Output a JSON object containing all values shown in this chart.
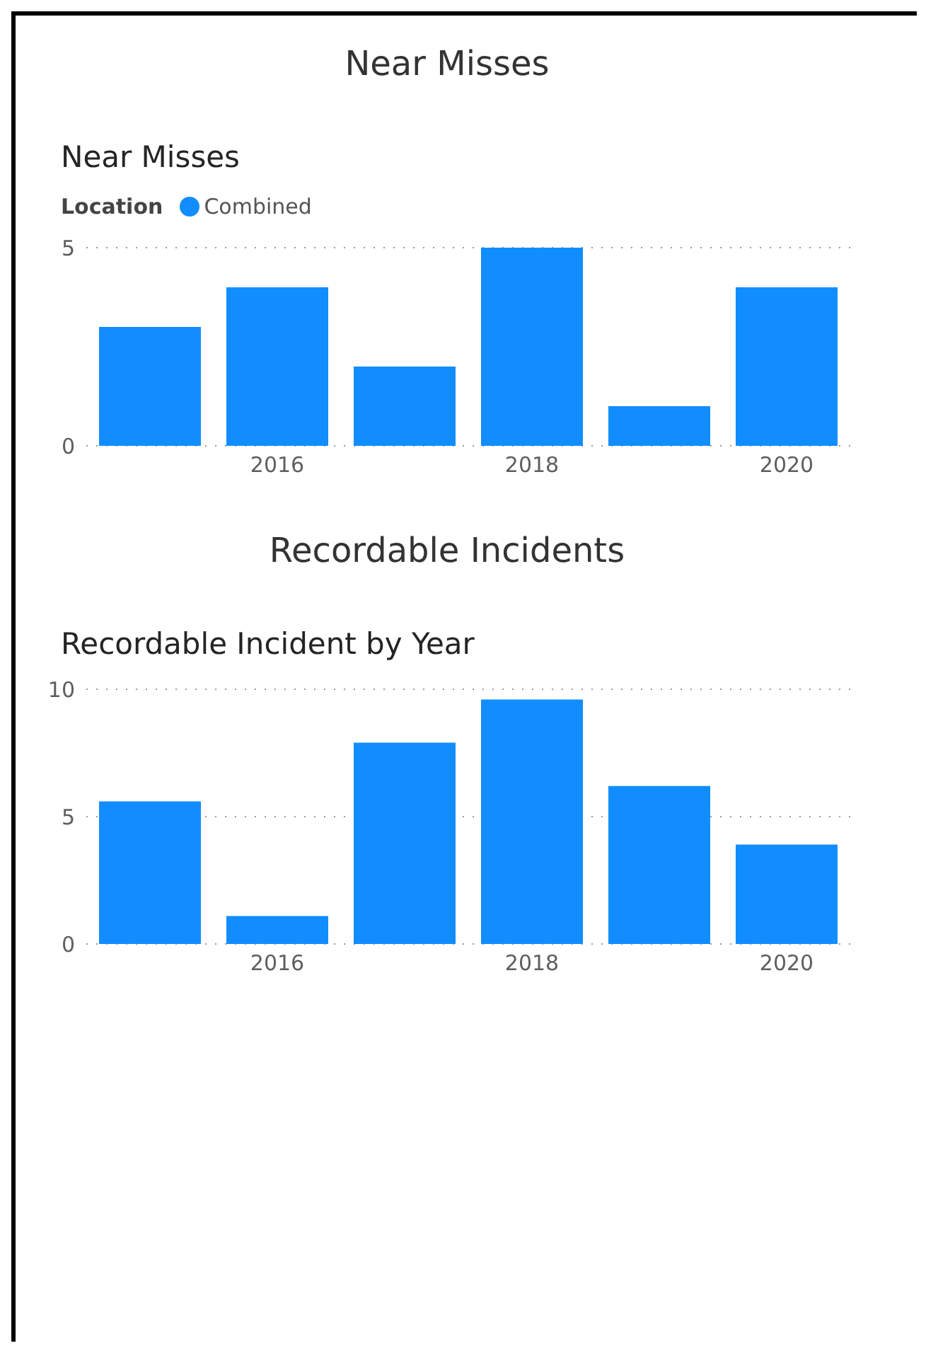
{
  "chart_data": [
    {
      "type": "bar",
      "title": "Near Misses",
      "subtitle": "Near Misses",
      "legend_title": "Location",
      "categories": [
        null,
        "2016",
        null,
        "2018",
        null,
        "2020"
      ],
      "series": [
        {
          "name": "Combined",
          "color": "#118dff",
          "values": [
            3,
            4,
            2,
            5,
            1,
            4
          ]
        }
      ],
      "ylim": [
        0,
        5
      ],
      "yticks": [
        0,
        5
      ],
      "grid": "y",
      "legend": "top left"
    },
    {
      "type": "bar",
      "title": "Recordable Incidents",
      "subtitle": "Recordable Incident by Year",
      "categories": [
        null,
        "2016",
        null,
        "2018",
        null,
        "2020"
      ],
      "series": [
        {
          "color": "#118dff",
          "values": [
            5.6,
            1.1,
            7.9,
            9.6,
            6.2,
            3.9
          ]
        }
      ],
      "ylim": [
        0,
        10
      ],
      "yticks": [
        0,
        5,
        10
      ],
      "grid": "y"
    }
  ]
}
